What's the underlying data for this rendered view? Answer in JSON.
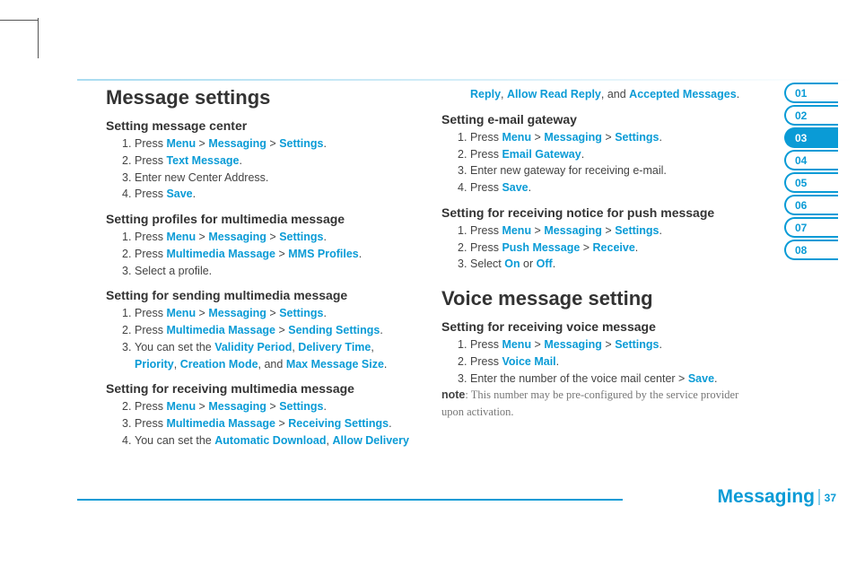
{
  "colors": {
    "accent": "#0a9bd6",
    "text": "#2b2b2b",
    "muted": "#777"
  },
  "page": {
    "section": "Messaging",
    "number": "37"
  },
  "tabs": {
    "items": [
      "01",
      "02",
      "03",
      "04",
      "05",
      "06",
      "07",
      "08"
    ],
    "active_index": 2
  },
  "left": {
    "h1": "Message settings",
    "sections": [
      {
        "title": "Setting message center",
        "start": 1,
        "steps": [
          [
            [
              "t",
              "Press "
            ],
            [
              "k",
              "Menu"
            ],
            [
              "t",
              " > "
            ],
            [
              "k",
              "Messaging"
            ],
            [
              "t",
              " > "
            ],
            [
              "k",
              "Settings"
            ],
            [
              "t",
              "."
            ]
          ],
          [
            [
              "t",
              "Press "
            ],
            [
              "k",
              "Text Message"
            ],
            [
              "t",
              "."
            ]
          ],
          [
            [
              "t",
              "Enter new Center Address."
            ]
          ],
          [
            [
              "t",
              "Press "
            ],
            [
              "k",
              "Save"
            ],
            [
              "t",
              "."
            ]
          ]
        ]
      },
      {
        "title": "Setting profiles for multimedia message",
        "start": 1,
        "steps": [
          [
            [
              "t",
              "Press "
            ],
            [
              "k",
              "Menu"
            ],
            [
              "t",
              " > "
            ],
            [
              "k",
              "Messaging"
            ],
            [
              "t",
              " > "
            ],
            [
              "k",
              "Settings"
            ],
            [
              "t",
              "."
            ]
          ],
          [
            [
              "t",
              "Press "
            ],
            [
              "k",
              "Multimedia Massage"
            ],
            [
              "t",
              " > "
            ],
            [
              "k",
              "MMS Profiles"
            ],
            [
              "t",
              "."
            ]
          ],
          [
            [
              "t",
              "Select a profile."
            ]
          ]
        ]
      },
      {
        "title": "Setting for sending multimedia message",
        "start": 1,
        "steps": [
          [
            [
              "t",
              "Press "
            ],
            [
              "k",
              "Menu"
            ],
            [
              "t",
              " > "
            ],
            [
              "k",
              "Messaging"
            ],
            [
              "t",
              " > "
            ],
            [
              "k",
              "Settings"
            ],
            [
              "t",
              "."
            ]
          ],
          [
            [
              "t",
              "Press "
            ],
            [
              "k",
              "Multimedia Massage"
            ],
            [
              "t",
              " > "
            ],
            [
              "k",
              "Sending Settings"
            ],
            [
              "t",
              "."
            ]
          ],
          [
            [
              "t",
              "You can set the "
            ],
            [
              "k",
              "Validity Period"
            ],
            [
              "t",
              ", "
            ],
            [
              "k",
              "Delivery Time"
            ],
            [
              "t",
              ", "
            ],
            [
              "k",
              "Priority"
            ],
            [
              "t",
              ", "
            ],
            [
              "k",
              "Creation Mode"
            ],
            [
              "t",
              ", and "
            ],
            [
              "k",
              "Max Message Size"
            ],
            [
              "t",
              "."
            ]
          ]
        ]
      },
      {
        "title": "Setting for receiving multimedia message",
        "start": 2,
        "steps": [
          [
            [
              "t",
              "Press "
            ],
            [
              "k",
              "Menu"
            ],
            [
              "t",
              " > "
            ],
            [
              "k",
              "Messaging"
            ],
            [
              "t",
              " > "
            ],
            [
              "k",
              "Settings"
            ],
            [
              "t",
              "."
            ]
          ],
          [
            [
              "t",
              "Press "
            ],
            [
              "k",
              "Multimedia Massage"
            ],
            [
              "t",
              " > "
            ],
            [
              "k",
              "Receiving Settings"
            ],
            [
              "t",
              "."
            ]
          ],
          [
            [
              "t",
              "You can set the "
            ],
            [
              "k",
              "Automatic Download"
            ],
            [
              "t",
              ", "
            ],
            [
              "k",
              "Allow Delivery "
            ]
          ]
        ]
      }
    ]
  },
  "right": {
    "runin": [
      [
        "k",
        "Reply"
      ],
      [
        "t",
        ", "
      ],
      [
        "k",
        "Allow Read Reply"
      ],
      [
        "t",
        ", and "
      ],
      [
        "k",
        "Accepted Messages"
      ],
      [
        "t",
        "."
      ]
    ],
    "sections": [
      {
        "title": "Setting e-mail gateway",
        "start": 1,
        "steps": [
          [
            [
              "t",
              "Press "
            ],
            [
              "k",
              "Menu"
            ],
            [
              "t",
              " > "
            ],
            [
              "k",
              "Messaging"
            ],
            [
              "t",
              " > "
            ],
            [
              "k",
              "Settings"
            ],
            [
              "t",
              "."
            ]
          ],
          [
            [
              "t",
              "Press "
            ],
            [
              "k",
              "Email Gateway"
            ],
            [
              "t",
              "."
            ]
          ],
          [
            [
              "t",
              "Enter new gateway for receiving e-mail."
            ]
          ],
          [
            [
              "t",
              "Press "
            ],
            [
              "k",
              "Save"
            ],
            [
              "t",
              "."
            ]
          ]
        ]
      },
      {
        "title": "Setting for receiving notice for push message",
        "start": 1,
        "steps": [
          [
            [
              "t",
              "Press "
            ],
            [
              "k",
              "Menu"
            ],
            [
              "t",
              " > "
            ],
            [
              "k",
              "Messaging"
            ],
            [
              "t",
              " > "
            ],
            [
              "k",
              "Settings"
            ],
            [
              "t",
              "."
            ]
          ],
          [
            [
              "t",
              "Press "
            ],
            [
              "k",
              "Push Message"
            ],
            [
              "t",
              " > "
            ],
            [
              "k",
              "Receive"
            ],
            [
              "t",
              "."
            ]
          ],
          [
            [
              "t",
              "Select "
            ],
            [
              "k",
              "On"
            ],
            [
              "t",
              " or "
            ],
            [
              "k",
              "Off"
            ],
            [
              "t",
              "."
            ]
          ]
        ]
      }
    ],
    "h1b": "Voice message setting",
    "sections_b": [
      {
        "title": "Setting for receiving voice message",
        "start": 1,
        "steps": [
          [
            [
              "t",
              "Press "
            ],
            [
              "k",
              "Menu"
            ],
            [
              "t",
              " > "
            ],
            [
              "k",
              "Messaging"
            ],
            [
              "t",
              " > "
            ],
            [
              "k",
              "Settings"
            ],
            [
              "t",
              "."
            ]
          ],
          [
            [
              "t",
              "Press "
            ],
            [
              "k",
              "Voice Mail"
            ],
            [
              "t",
              "."
            ]
          ],
          [
            [
              "t",
              "Enter the number of the voice mail center > "
            ],
            [
              "k",
              "Save"
            ],
            [
              "t",
              "."
            ]
          ]
        ]
      }
    ],
    "note_label": "note",
    "note_text": ": This number may be pre-configured by the service provider upon activation."
  }
}
